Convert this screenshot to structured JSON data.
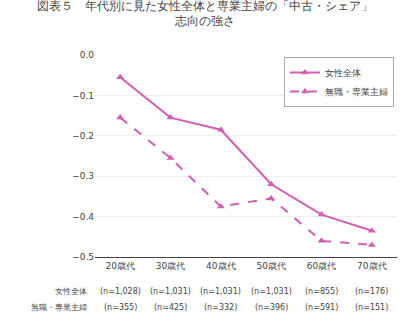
{
  "chart_data": {
    "type": "line",
    "title": "図表５　年代別に見た女性全体と専業主婦の「中古・シェア」",
    "subtitle": "志向の強さ",
    "categories": [
      "20歳代",
      "30歳代",
      "40歳代",
      "50歳代",
      "60歳代",
      "70歳代"
    ],
    "series": [
      {
        "name": "女性全体",
        "color": "#d060b0",
        "line_style": "solid",
        "marker": "triangle-up",
        "values": [
          -0.055,
          -0.155,
          -0.185,
          -0.32,
          -0.395,
          -0.435
        ]
      },
      {
        "name": "無職・専業主婦",
        "color": "#d060b0",
        "line_style": "dashed",
        "marker": "triangle-up",
        "values": [
          -0.155,
          -0.255,
          -0.375,
          -0.355,
          -0.46,
          -0.47
        ]
      }
    ],
    "annotations": [
      {
        "header": "女性全体",
        "labels": [
          "(n=1,028)",
          "(n=1,031)",
          "(n=1,031)",
          "(n=1,031)",
          "(n=855)",
          "(n=176)"
        ]
      },
      {
        "header": "無職・専業主婦",
        "labels": [
          "(n=355)",
          "(n=425)",
          "(n=332)",
          "(n=396)",
          "(n=591)",
          "(n=151)"
        ]
      }
    ],
    "ylim": [
      -0.5,
      0.0
    ],
    "yticks": [
      {
        "value": 0.0,
        "label": "0.0"
      },
      {
        "value": -0.1,
        "label": "−0.1"
      },
      {
        "value": -0.2,
        "label": "−0.2"
      },
      {
        "value": -0.3,
        "label": "−0.3"
      },
      {
        "value": -0.4,
        "label": "−0.4"
      },
      {
        "value": -0.5,
        "label": "−0.5"
      }
    ],
    "grid": true,
    "legend": "upper right"
  }
}
